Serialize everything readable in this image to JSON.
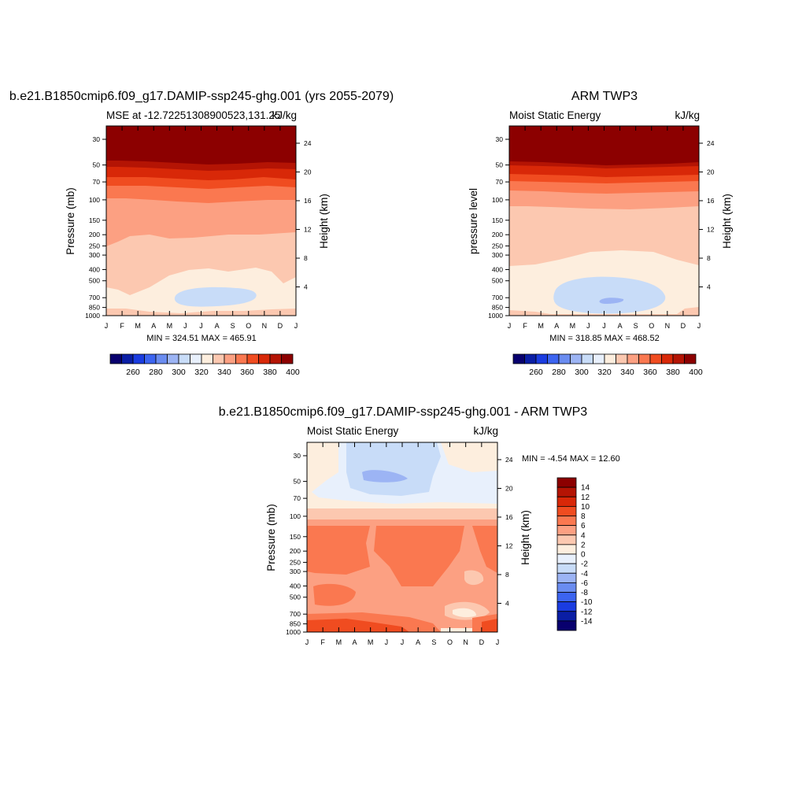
{
  "figure": {
    "panels": [
      {
        "title": "b.e21.B1850cmip6.f09_g17.DAMIP-ssp245-ghg.001 (yrs 2055-2079)",
        "subtitle_left": "MSE at -12.72251308900523,131.25",
        "subtitle_right": "kJ/kg",
        "ylabel_left": "Pressure (mb)",
        "ylabel_right": "Height (km)",
        "stats": "MIN = 324.51 MAX = 465.91"
      },
      {
        "title": "ARM TWP3",
        "subtitle_left": "Moist Static Energy",
        "subtitle_right": "kJ/kg",
        "ylabel_left": "pressure level",
        "ylabel_right": "Height (km)",
        "stats": "MIN = 318.85 MAX = 468.52"
      },
      {
        "title": "b.e21.B1850cmip6.f09_g17.DAMIP-ssp245-ghg.001 - ARM TWP3",
        "subtitle_left": "Moist Static Energy",
        "subtitle_right": "kJ/kg",
        "ylabel_left": "Pressure (mb)",
        "ylabel_right": "Height (km)",
        "stats": "MIN =  -4.54 MAX =  12.60"
      }
    ]
  },
  "chart_data": [
    {
      "type": "heatmap",
      "title": "b.e21.B1850cmip6.f09_g17.DAMIP-ssp245-ghg.001 (yrs 2055-2079)",
      "subtitle": "MSE at -12.72251308900523,131.25",
      "units": "kJ/kg",
      "xlabel": "",
      "ylabel": "Pressure (mb)",
      "y2label": "Height (km)",
      "x": [
        "J",
        "F",
        "M",
        "A",
        "M",
        "J",
        "J",
        "A",
        "S",
        "O",
        "N",
        "D",
        "J"
      ],
      "pressure_ticks": [
        30,
        50,
        70,
        100,
        150,
        200,
        250,
        300,
        400,
        500,
        700,
        850,
        1000
      ],
      "height_ticks_km": [
        4,
        8,
        12,
        16,
        20,
        24
      ],
      "levels": [
        250,
        260,
        270,
        280,
        290,
        300,
        310,
        320,
        330,
        340,
        350,
        360,
        370,
        380,
        390,
        400
      ],
      "colorbar_labels": [
        260,
        280,
        300,
        320,
        340,
        360,
        380,
        400
      ],
      "colors": [
        "#08006e",
        "#0a1ea5",
        "#1a3ce0",
        "#3c64f0",
        "#6a8cf0",
        "#9cb4f4",
        "#c8dcf8",
        "#e8f0fc",
        "#fdeede",
        "#fcc8b0",
        "#fca082",
        "#fa7850",
        "#f04c20",
        "#d82808",
        "#b41404",
        "#8c0000"
      ],
      "min": 324.51,
      "max": 465.91
    },
    {
      "type": "heatmap",
      "title": "ARM TWP3",
      "subtitle": "Moist Static Energy",
      "units": "kJ/kg",
      "xlabel": "",
      "ylabel": "pressure level",
      "y2label": "Height (km)",
      "x": [
        "J",
        "F",
        "M",
        "A",
        "M",
        "J",
        "J",
        "A",
        "S",
        "O",
        "N",
        "D",
        "J"
      ],
      "pressure_ticks": [
        30,
        50,
        70,
        100,
        150,
        200,
        250,
        300,
        400,
        500,
        700,
        850,
        1000
      ],
      "height_ticks_km": [
        4,
        8,
        12,
        16,
        20,
        24
      ],
      "levels": [
        250,
        260,
        270,
        280,
        290,
        300,
        310,
        320,
        330,
        340,
        350,
        360,
        370,
        380,
        390,
        400
      ],
      "colorbar_labels": [
        260,
        280,
        300,
        320,
        340,
        360,
        380,
        400
      ],
      "min": 318.85,
      "max": 468.52
    },
    {
      "type": "heatmap",
      "title": "b.e21.B1850cmip6.f09_g17.DAMIP-ssp245-ghg.001 - ARM TWP3",
      "subtitle": "Moist Static Energy",
      "units": "kJ/kg",
      "xlabel": "",
      "ylabel": "Pressure (mb)",
      "y2label": "Height (km)",
      "x": [
        "J",
        "F",
        "M",
        "A",
        "M",
        "J",
        "J",
        "A",
        "S",
        "O",
        "N",
        "D",
        "J"
      ],
      "pressure_ticks": [
        30,
        50,
        70,
        100,
        150,
        200,
        250,
        300,
        400,
        500,
        700,
        850,
        1000
      ],
      "height_ticks_km": [
        4,
        8,
        12,
        16,
        20,
        24
      ],
      "levels": [
        -14,
        -12,
        -10,
        -8,
        -6,
        -4,
        -2,
        0,
        2,
        4,
        6,
        8,
        10,
        12,
        14
      ],
      "colorbar_labels": [
        14,
        12,
        10,
        8,
        6,
        4,
        2,
        0,
        -2,
        -4,
        -6,
        -8,
        -10,
        -12,
        -14
      ],
      "colors": [
        "#08006e",
        "#0a1ea5",
        "#1a3ce0",
        "#3c64f0",
        "#6a8cf0",
        "#9cb4f4",
        "#c8dcf8",
        "#e8f0fc",
        "#fdeede",
        "#fcc8b0",
        "#fca082",
        "#fa7850",
        "#f04c20",
        "#d82808",
        "#b41404",
        "#8c0000"
      ],
      "min": -4.54,
      "max": 12.6
    }
  ]
}
